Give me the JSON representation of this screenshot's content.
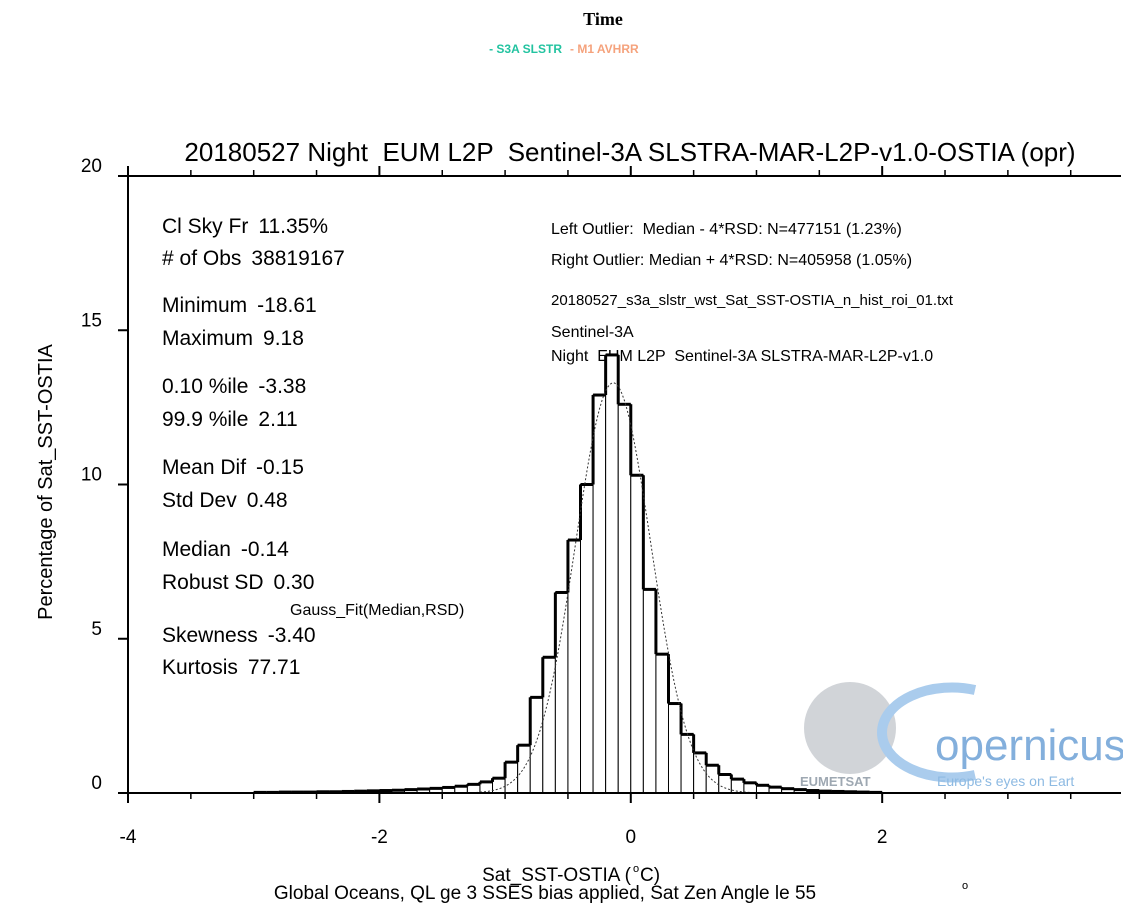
{
  "chart_data": {
    "type": "histogram",
    "header": "Time",
    "legend": [
      {
        "name": "- S3A SLSTR",
        "color": "#22c3a0"
      },
      {
        "name": "- M1 AVHRR",
        "color": "#f5a27c"
      }
    ],
    "title": "20180527 Night  EUM L2P  Sentinel-3A SLSTRA-MAR-L2P-v1.0-OSTIA (opr)",
    "x_label": "Sat_SST-OSTIA (",
    "x_label_unit": "o",
    "x_label_end": "C)",
    "subtitle": "Global Oceans, QL ge 3 SSES bias applied, Sat Zen Angle le 55",
    "subtitle_degree": "o",
    "y_label": "Percentage of Sat_SST-OSTIA",
    "stats": [
      {
        "name": "Cl Sky Fr",
        "value": "11.35%"
      },
      {
        "name": "# of Obs",
        "value": "38819167"
      },
      {
        "name": "Minimum",
        "value": "-18.61"
      },
      {
        "name": "Maximum",
        "value": "9.18"
      },
      {
        "name": "0.10 %ile",
        "value": "-3.38"
      },
      {
        "name": "99.9 %ile",
        "value": "2.11"
      },
      {
        "name": "Mean Dif",
        "value": "-0.15"
      },
      {
        "name": "Std Dev",
        "value": "0.48"
      },
      {
        "name": "Median",
        "value": "-0.14"
      },
      {
        "name": "Robust SD",
        "value": "0.30"
      },
      {
        "name": "Skewness",
        "value": "-3.40"
      },
      {
        "name": "Kurtosis",
        "value": "77.71"
      }
    ],
    "fit_label": "Gauss_Fit(Median,RSD)",
    "notes": [
      "Left Outlier:  Median - 4*RSD: N=477151 (1.23%)",
      "Right Outlier: Median + 4*RSD: N=405958 (1.05%)",
      "20180527_s3a_slstr_wst_Sat_SST-OSTIA_n_hist_roi_01.txt",
      "Sentinel-3A",
      "Night  EUM L2P  Sentinel-3A SLSTRA-MAR-L2P-v1.0"
    ],
    "logo": {
      "brand": "opernicus",
      "agency": "EUMETSAT",
      "tagline": "Europe's eyes on Eart"
    },
    "bins": [
      -3.0,
      -2.9,
      -2.8,
      -2.7,
      -2.6,
      -2.5,
      -2.4,
      -2.3,
      -2.2,
      -2.1,
      -2.0,
      -1.9,
      -1.8,
      -1.7,
      -1.6,
      -1.5,
      -1.4,
      -1.3,
      -1.2,
      -1.1,
      -1.0,
      -0.9,
      -0.8,
      -0.7,
      -0.6,
      -0.5,
      -0.4,
      -0.3,
      -0.2,
      -0.1,
      0.0,
      0.1,
      0.2,
      0.3,
      0.4,
      0.5,
      0.6,
      0.7,
      0.8,
      0.9,
      1.0,
      1.1,
      1.2,
      1.3,
      1.4,
      1.5,
      1.6,
      1.7,
      1.8,
      1.9,
      2.0
    ],
    "values": [
      0.02,
      0.02,
      0.03,
      0.03,
      0.03,
      0.04,
      0.04,
      0.05,
      0.06,
      0.07,
      0.08,
      0.09,
      0.11,
      0.13,
      0.15,
      0.18,
      0.22,
      0.28,
      0.36,
      0.48,
      1.0,
      1.55,
      3.1,
      4.4,
      6.5,
      8.2,
      10.0,
      12.9,
      14.2,
      12.6,
      10.3,
      6.6,
      4.5,
      2.9,
      1.9,
      1.3,
      0.9,
      0.6,
      0.45,
      0.33,
      0.25,
      0.19,
      0.14,
      0.11,
      0.08,
      0.06,
      0.05,
      0.04,
      0.03,
      0.02
    ],
    "color": "#000000",
    "xlim": [
      -4,
      3.9
    ],
    "xticks": [
      -4,
      -2,
      0,
      2
    ],
    "ylim": [
      0,
      20
    ],
    "yticks": [
      0,
      5,
      10,
      15,
      20
    ]
  }
}
